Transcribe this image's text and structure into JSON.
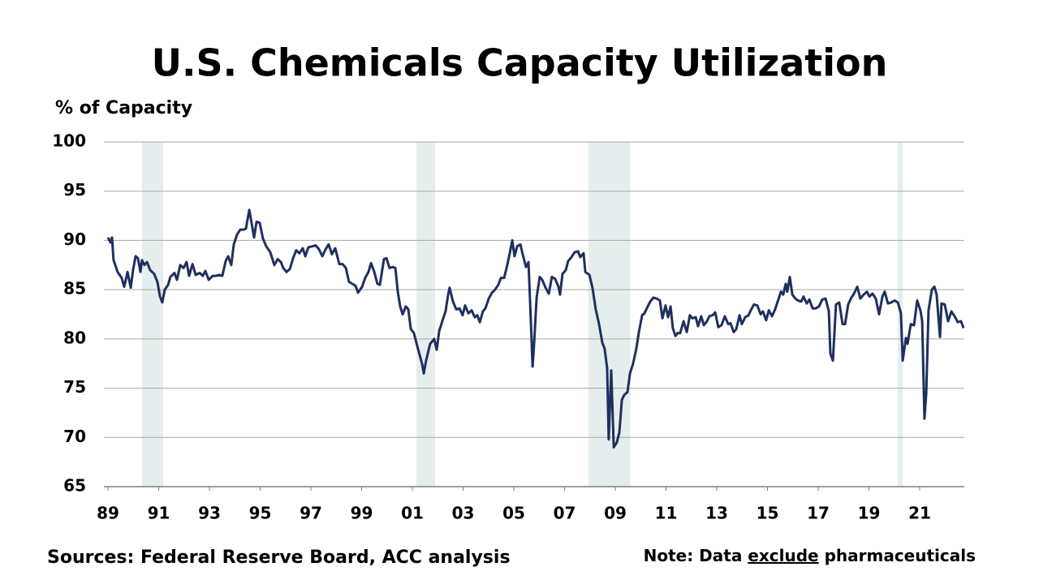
{
  "chart_data": {
    "type": "line",
    "title": "U.S. Chemicals Capacity Utilization",
    "y_label": "% of Capacity",
    "source": "Sources: Federal Reserve Board, ACC analysis",
    "note_prefix": "Note: Data",
    "note_emphasis": "exclude",
    "note_suffix": "pharmaceuticals",
    "color": "#1f2f5f",
    "shade_color": "#e6eeed",
    "grid": true,
    "xlim": [
      1988.84,
      2022.76
    ],
    "ylim": [
      65,
      100
    ],
    "yticks": [
      65,
      70,
      75,
      80,
      85,
      90,
      95,
      100
    ],
    "xticks": [
      {
        "value": 1989,
        "label": "89"
      },
      {
        "value": 1991,
        "label": "91"
      },
      {
        "value": 1993,
        "label": "93"
      },
      {
        "value": 1995,
        "label": "95"
      },
      {
        "value": 1997,
        "label": "97"
      },
      {
        "value": 1999,
        "label": "99"
      },
      {
        "value": 2001,
        "label": "01"
      },
      {
        "value": 2003,
        "label": "03"
      },
      {
        "value": 2005,
        "label": "05"
      },
      {
        "value": 2007,
        "label": "07"
      },
      {
        "value": 2009,
        "label": "09"
      },
      {
        "value": 2011,
        "label": "11"
      },
      {
        "value": 2013,
        "label": "13"
      },
      {
        "value": 2015,
        "label": "15"
      },
      {
        "value": 2017,
        "label": "17"
      },
      {
        "value": 2019,
        "label": "19"
      },
      {
        "value": 2021,
        "label": "21"
      }
    ],
    "shaded_periods": [
      {
        "start": 1990.34,
        "end": 1991.18
      },
      {
        "start": 2001.16,
        "end": 2001.9
      },
      {
        "start": 2007.94,
        "end": 2009.6
      },
      {
        "start": 2020.14,
        "end": 2020.33
      }
    ],
    "x": [
      1989.0,
      1989.1,
      1989.16,
      1989.22,
      1989.38,
      1989.54,
      1989.64,
      1989.77,
      1989.9,
      1989.99,
      1990.09,
      1990.18,
      1990.28,
      1990.34,
      1990.44,
      1990.54,
      1990.66,
      1990.82,
      1990.95,
      1991.05,
      1991.14,
      1991.24,
      1991.37,
      1991.46,
      1991.62,
      1991.72,
      1991.85,
      1991.98,
      1992.1,
      1992.2,
      1992.33,
      1992.46,
      1992.62,
      1992.74,
      1992.84,
      1992.97,
      1993.13,
      1993.26,
      1993.38,
      1993.51,
      1993.64,
      1993.74,
      1993.86,
      1993.96,
      1994.09,
      1994.22,
      1994.34,
      1994.44,
      1994.57,
      1994.66,
      1994.76,
      1994.86,
      1994.98,
      1995.11,
      1995.24,
      1995.4,
      1995.56,
      1995.69,
      1995.82,
      1995.91,
      1996.04,
      1996.17,
      1996.3,
      1996.42,
      1996.55,
      1996.68,
      1996.78,
      1996.9,
      1997.06,
      1997.19,
      1997.32,
      1997.45,
      1997.58,
      1997.7,
      1997.83,
      1997.96,
      1998.12,
      1998.25,
      1998.38,
      1998.5,
      1998.63,
      1998.76,
      1998.86,
      1999.02,
      1999.14,
      1999.27,
      1999.37,
      1999.5,
      1999.62,
      1999.72,
      1999.88,
      1999.98,
      2000.1,
      2000.23,
      2000.33,
      2000.42,
      2000.52,
      2000.62,
      2000.74,
      2000.84,
      2000.94,
      2001.06,
      2001.22,
      2001.38,
      2001.45,
      2001.54,
      2001.7,
      2001.86,
      2001.96,
      2002.06,
      2002.18,
      2002.31,
      2002.41,
      2002.47,
      2002.6,
      2002.73,
      2002.86,
      2002.98,
      2003.08,
      2003.21,
      2003.34,
      2003.46,
      2003.56,
      2003.66,
      2003.78,
      2003.88,
      2004.01,
      2004.14,
      2004.26,
      2004.39,
      2004.49,
      2004.62,
      2004.74,
      2004.84,
      2004.94,
      2005.03,
      2005.13,
      2005.26,
      2005.35,
      2005.48,
      2005.58,
      2005.67,
      2005.74,
      2005.8,
      2005.9,
      2006.02,
      2006.12,
      2006.25,
      2006.38,
      2006.5,
      2006.63,
      2006.76,
      2006.82,
      2006.92,
      2007.05,
      2007.14,
      2007.27,
      2007.4,
      2007.53,
      2007.62,
      2007.75,
      2007.82,
      2007.98,
      2008.1,
      2008.23,
      2008.36,
      2008.49,
      2008.58,
      2008.68,
      2008.74,
      2008.84,
      2008.94,
      2009.06,
      2009.16,
      2009.26,
      2009.35,
      2009.48,
      2009.58,
      2009.7,
      2009.83,
      2009.93,
      2010.06,
      2010.15,
      2010.28,
      2010.38,
      2010.5,
      2010.63,
      2010.76,
      2010.86,
      2010.98,
      2011.08,
      2011.18,
      2011.27,
      2011.37,
      2011.46,
      2011.56,
      2011.69,
      2011.82,
      2011.94,
      2012.04,
      2012.17,
      2012.26,
      2012.39,
      2012.49,
      2012.62,
      2012.71,
      2012.84,
      2012.94,
      2013.06,
      2013.19,
      2013.32,
      2013.45,
      2013.54,
      2013.67,
      2013.77,
      2013.9,
      2013.99,
      2014.12,
      2014.25,
      2014.34,
      2014.47,
      2014.6,
      2014.73,
      2014.82,
      2014.95,
      2015.05,
      2015.18,
      2015.3,
      2015.43,
      2015.53,
      2015.62,
      2015.72,
      2015.78,
      2015.88,
      2015.98,
      2016.1,
      2016.2,
      2016.33,
      2016.42,
      2016.55,
      2016.65,
      2016.78,
      2016.9,
      2017.03,
      2017.16,
      2017.29,
      2017.42,
      2017.48,
      2017.58,
      2017.7,
      2017.83,
      2017.96,
      2018.06,
      2018.18,
      2018.31,
      2018.41,
      2018.54,
      2018.66,
      2018.79,
      2018.92,
      2019.02,
      2019.14,
      2019.27,
      2019.4,
      2019.53,
      2019.62,
      2019.75,
      2019.88,
      2020.01,
      2020.14,
      2020.26,
      2020.33,
      2020.46,
      2020.52,
      2020.65,
      2020.78,
      2020.9,
      2021.03,
      2021.1,
      2021.19,
      2021.26,
      2021.35,
      2021.48,
      2021.58,
      2021.67,
      2021.8,
      2021.86,
      2021.99,
      2022.12,
      2022.25,
      2022.38,
      2022.5,
      2022.63,
      2022.73
    ],
    "values": [
      90.3,
      89.8,
      90.3,
      88,
      86.8,
      86.2,
      85.3,
      86.8,
      85.2,
      87,
      88.4,
      88.2,
      86.8,
      88,
      87.5,
      87.8,
      87,
      86.6,
      85.8,
      84.3,
      83.7,
      85,
      85.5,
      86.3,
      86.7,
      86,
      87.5,
      87.2,
      87.8,
      86.4,
      87.6,
      86.5,
      86.7,
      86.4,
      86.9,
      86,
      86.4,
      86.4,
      86.5,
      86.4,
      87.9,
      88.4,
      87.5,
      89.6,
      90.6,
      91.1,
      91.1,
      91.2,
      93.1,
      91.8,
      90.3,
      91.9,
      91.8,
      90.2,
      89.4,
      88.8,
      87.5,
      88.1,
      87.8,
      87.2,
      86.8,
      87.1,
      88.2,
      89,
      88.7,
      89.2,
      88.4,
      89.3,
      89.4,
      89.5,
      89.1,
      88.4,
      89.1,
      89.6,
      88.6,
      89.2,
      87.6,
      87.6,
      87.2,
      85.8,
      85.6,
      85.4,
      84.7,
      85.3,
      86.2,
      86.8,
      87.7,
      86.8,
      85.6,
      85.5,
      88.1,
      88.2,
      87.2,
      87.3,
      87.2,
      84.9,
      83.3,
      82.5,
      83.3,
      83,
      81,
      80.6,
      79,
      77.5,
      76.5,
      77.8,
      79.5,
      80,
      78.9,
      80.8,
      81.8,
      82.8,
      84.5,
      85.2,
      83.8,
      83,
      83.1,
      82.4,
      83.4,
      82.6,
      82.9,
      82.2,
      82.4,
      81.7,
      82.8,
      83.1,
      84.1,
      84.7,
      85,
      85.5,
      86.2,
      86.2,
      87.5,
      88.7,
      90,
      88.4,
      89.4,
      89.6,
      88.6,
      87.3,
      87.8,
      82,
      77.2,
      79.5,
      84.2,
      86.3,
      86,
      85.2,
      84.6,
      86.3,
      86.1,
      85.3,
      84.5,
      86.6,
      87,
      87.9,
      88.3,
      88.8,
      88.9,
      88.3,
      88.7,
      86.8,
      86.5,
      85.2,
      83,
      81.5,
      79.6,
      79,
      77,
      69.8,
      76.8,
      69,
      69.5,
      70.5,
      73.8,
      74.3,
      74.6,
      76.5,
      77.5,
      79,
      80.7,
      82.4,
      82.6,
      83.3,
      83.8,
      84.2,
      84.1,
      83.9,
      82.1,
      83.4,
      82.2,
      83.3,
      81.1,
      80.3,
      80.6,
      80.6,
      81.8,
      80.7,
      82.4,
      82.1,
      82.2,
      81.3,
      82.3,
      81.4,
      81.8,
      82.3,
      82.4,
      82.7,
      81.2,
      81.4,
      82.3,
      81.5,
      81.6,
      80.7,
      81,
      82.4,
      81.5,
      82.2,
      82.4,
      82.9,
      83.5,
      83.4,
      82.5,
      82.8,
      81.9,
      82.9,
      82.3,
      83,
      84,
      84.8,
      84.5,
      85.6,
      84.8,
      86.3,
      84.5,
      84.1,
      83.9,
      83.8,
      84.3,
      83.6,
      84,
      83.1,
      83.1,
      83.3,
      84,
      84.1,
      82.8,
      78.5,
      77.8,
      83.5,
      83.7,
      81.5,
      81.5,
      83.5,
      84.2,
      84.6,
      85.3,
      84.1,
      84.5,
      84.8,
      84.3,
      84.6,
      84.1,
      82.5,
      84.3,
      84.8,
      83.6,
      83.7,
      83.9,
      83.7,
      82.6,
      77.8,
      80.1,
      79.5,
      81.5,
      81.4,
      83.9,
      82.9,
      81.8,
      71.9,
      74.5,
      82.9,
      85,
      85.3,
      84.5,
      80.2,
      83.6,
      83.5,
      81.8,
      82.8,
      82.3,
      81.7,
      81.8,
      81.1
    ]
  }
}
